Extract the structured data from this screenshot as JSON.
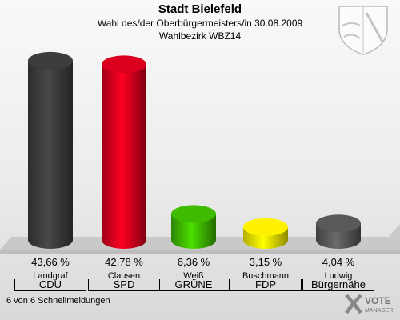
{
  "header": {
    "title": "Stadt Bielefeld",
    "subtitle": "Wahl des/der Oberbürgermeisters/in 30.08.2009",
    "district": "Wahlbezirk WBZ14"
  },
  "footer": {
    "status": "6 von 6 Schnellmeldungen"
  },
  "brand": {
    "line1": "VOTE",
    "line2": "MANAGER"
  },
  "chart_data": {
    "type": "bar",
    "categories": [
      "CDU",
      "SPD",
      "GRÜNE",
      "FDP",
      "Bürgernähe"
    ],
    "candidates": [
      "Landgraf",
      "Clausen",
      "Weiß",
      "Buschmann",
      "Ludwig"
    ],
    "values": [
      43.66,
      42.78,
      6.36,
      3.15,
      4.04
    ],
    "value_labels": [
      "43,66 %",
      "42,78 %",
      "6,36 %",
      "3,15 %",
      "4,04 %"
    ],
    "colors": [
      "#3a3a3a",
      "#d0001c",
      "#3cb300",
      "#f2e600",
      "#555555"
    ],
    "ylim": [
      0,
      45
    ]
  }
}
